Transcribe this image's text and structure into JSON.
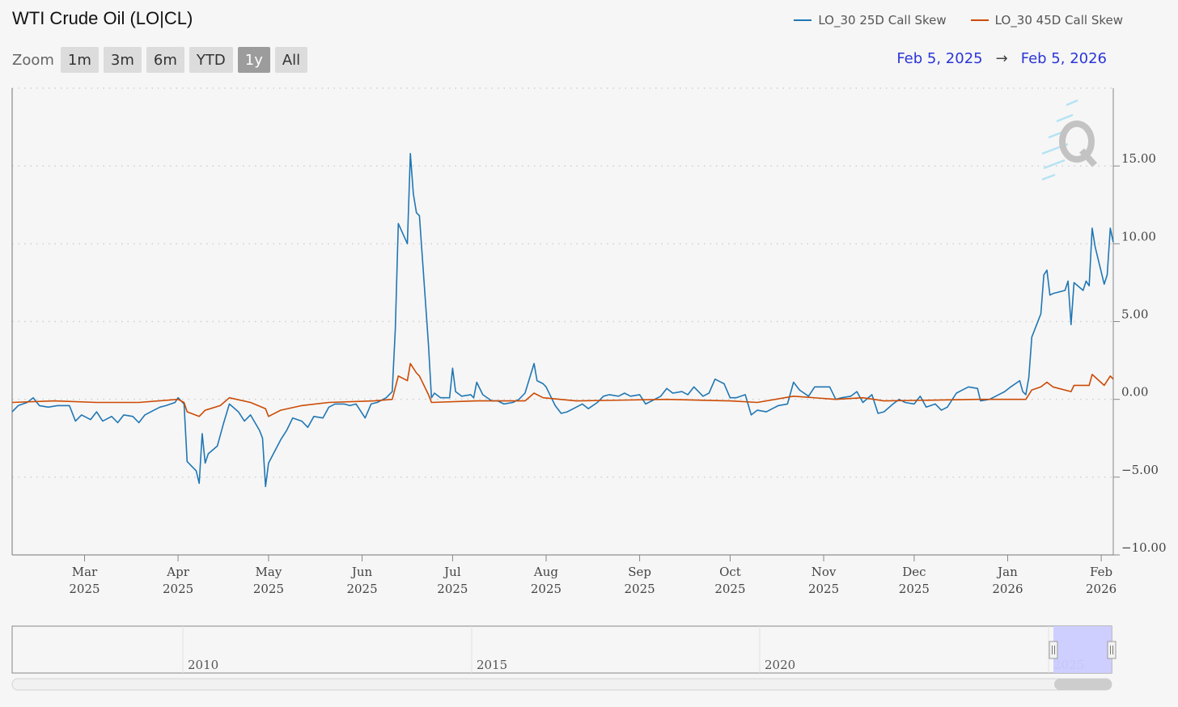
{
  "title": "WTI Crude Oil (LO|CL)",
  "zoom": {
    "label": "Zoom",
    "buttons": [
      "1m",
      "3m",
      "6m",
      "YTD",
      "1y",
      "All"
    ],
    "active": "1y"
  },
  "range": {
    "from": "Feb 5, 2025",
    "arrow": "→",
    "to": "Feb 5, 2026"
  },
  "colors": {
    "series1": "#2077b4",
    "series2": "#cc4a04",
    "navigator_mask": "#ccccff"
  },
  "navigator": {
    "labels": [
      "2010",
      "2015",
      "2020",
      "2025"
    ]
  },
  "chart_data": {
    "type": "line",
    "y_range": [
      -10,
      20
    ],
    "y_ticks": [
      15,
      10,
      5,
      0,
      -5,
      -10
    ],
    "y_tick_labels": [
      "15.00",
      "10.00",
      "5.00",
      "0.00",
      "−5.00",
      "−10.00"
    ],
    "x_range": [
      "2025-02-05",
      "2026-02-05"
    ],
    "x_ticks": [
      {
        "date": "2025-03-01",
        "label": [
          "Mar",
          "2025"
        ]
      },
      {
        "date": "2025-04-01",
        "label": [
          "Apr",
          "2025"
        ]
      },
      {
        "date": "2025-05-01",
        "label": [
          "May",
          "2025"
        ]
      },
      {
        "date": "2025-06-01",
        "label": [
          "Jun",
          "2025"
        ]
      },
      {
        "date": "2025-07-01",
        "label": [
          "Jul",
          "2025"
        ]
      },
      {
        "date": "2025-08-01",
        "label": [
          "Aug",
          "2025"
        ]
      },
      {
        "date": "2025-09-01",
        "label": [
          "Sep",
          "2025"
        ]
      },
      {
        "date": "2025-10-01",
        "label": [
          "Oct",
          "2025"
        ]
      },
      {
        "date": "2025-11-01",
        "label": [
          "Nov",
          "2025"
        ]
      },
      {
        "date": "2025-12-01",
        "label": [
          "Dec",
          "2025"
        ]
      },
      {
        "date": "2026-01-01",
        "label": [
          "Jan",
          "2026"
        ]
      },
      {
        "date": "2026-02-01",
        "label": [
          "Feb",
          "2026"
        ]
      }
    ],
    "grid": true,
    "legend_position": "top-right",
    "series": [
      {
        "name": "LO_30 25D Call Skew",
        "points": [
          [
            "2025-02-05",
            -0.8
          ],
          [
            "2025-02-07",
            -0.4
          ],
          [
            "2025-02-10",
            -0.2
          ],
          [
            "2025-02-12",
            0.1
          ],
          [
            "2025-02-14",
            -0.4
          ],
          [
            "2025-02-17",
            -0.5
          ],
          [
            "2025-02-20",
            -0.4
          ],
          [
            "2025-02-24",
            -0.4
          ],
          [
            "2025-02-26",
            -1.4
          ],
          [
            "2025-02-28",
            -1.0
          ],
          [
            "2025-03-03",
            -1.3
          ],
          [
            "2025-03-05",
            -0.8
          ],
          [
            "2025-03-07",
            -1.4
          ],
          [
            "2025-03-10",
            -1.1
          ],
          [
            "2025-03-12",
            -1.5
          ],
          [
            "2025-03-14",
            -1.0
          ],
          [
            "2025-03-17",
            -1.1
          ],
          [
            "2025-03-19",
            -1.5
          ],
          [
            "2025-03-21",
            -1.0
          ],
          [
            "2025-03-24",
            -0.7
          ],
          [
            "2025-03-26",
            -0.5
          ],
          [
            "2025-03-28",
            -0.4
          ],
          [
            "2025-03-31",
            -0.2
          ],
          [
            "2025-04-01",
            0.1
          ],
          [
            "2025-04-03",
            -0.3
          ],
          [
            "2025-04-04",
            -4.0
          ],
          [
            "2025-04-07",
            -4.6
          ],
          [
            "2025-04-08",
            -5.4
          ],
          [
            "2025-04-09",
            -2.2
          ],
          [
            "2025-04-10",
            -4.1
          ],
          [
            "2025-04-11",
            -3.5
          ],
          [
            "2025-04-14",
            -3.0
          ],
          [
            "2025-04-16",
            -1.6
          ],
          [
            "2025-04-18",
            -0.3
          ],
          [
            "2025-04-21",
            -0.8
          ],
          [
            "2025-04-23",
            -1.4
          ],
          [
            "2025-04-25",
            -1.0
          ],
          [
            "2025-04-28",
            -2.0
          ],
          [
            "2025-04-29",
            -2.5
          ],
          [
            "2025-04-30",
            -5.6
          ],
          [
            "2025-05-01",
            -4.1
          ],
          [
            "2025-05-05",
            -2.6
          ],
          [
            "2025-05-07",
            -2.0
          ],
          [
            "2025-05-09",
            -1.2
          ],
          [
            "2025-05-12",
            -1.4
          ],
          [
            "2025-05-14",
            -1.8
          ],
          [
            "2025-05-16",
            -1.1
          ],
          [
            "2025-05-19",
            -1.2
          ],
          [
            "2025-05-21",
            -0.5
          ],
          [
            "2025-05-23",
            -0.3
          ],
          [
            "2025-05-26",
            -0.3
          ],
          [
            "2025-05-28",
            -0.4
          ],
          [
            "2025-05-30",
            -0.3
          ],
          [
            "2025-06-02",
            -1.2
          ],
          [
            "2025-06-04",
            -0.3
          ],
          [
            "2025-06-06",
            -0.2
          ],
          [
            "2025-06-09",
            0.1
          ],
          [
            "2025-06-11",
            0.5
          ],
          [
            "2025-06-12",
            4.5
          ],
          [
            "2025-06-13",
            11.3
          ],
          [
            "2025-06-16",
            10.0
          ],
          [
            "2025-06-17",
            15.8
          ],
          [
            "2025-06-18",
            13.2
          ],
          [
            "2025-06-19",
            12.0
          ],
          [
            "2025-06-20",
            11.8
          ],
          [
            "2025-06-23",
            3.5
          ],
          [
            "2025-06-24",
            0.1
          ],
          [
            "2025-06-25",
            0.4
          ],
          [
            "2025-06-27",
            0.1
          ],
          [
            "2025-06-30",
            0.1
          ],
          [
            "2025-07-01",
            2.0
          ],
          [
            "2025-07-02",
            0.5
          ],
          [
            "2025-07-04",
            0.2
          ],
          [
            "2025-07-07",
            0.3
          ],
          [
            "2025-07-08",
            0.1
          ],
          [
            "2025-07-09",
            1.1
          ],
          [
            "2025-07-11",
            0.3
          ],
          [
            "2025-07-14",
            -0.1
          ],
          [
            "2025-07-16",
            -0.1
          ],
          [
            "2025-07-18",
            -0.3
          ],
          [
            "2025-07-21",
            -0.2
          ],
          [
            "2025-07-23",
            0.0
          ],
          [
            "2025-07-25",
            0.4
          ],
          [
            "2025-07-28",
            2.3
          ],
          [
            "2025-07-29",
            1.2
          ],
          [
            "2025-07-31",
            1.0
          ],
          [
            "2025-08-01",
            0.8
          ],
          [
            "2025-08-04",
            -0.4
          ],
          [
            "2025-08-06",
            -0.9
          ],
          [
            "2025-08-08",
            -0.8
          ],
          [
            "2025-08-11",
            -0.5
          ],
          [
            "2025-08-13",
            -0.3
          ],
          [
            "2025-08-15",
            -0.6
          ],
          [
            "2025-08-18",
            -0.2
          ],
          [
            "2025-08-20",
            0.2
          ],
          [
            "2025-08-22",
            0.3
          ],
          [
            "2025-08-25",
            0.2
          ],
          [
            "2025-08-27",
            0.4
          ],
          [
            "2025-08-29",
            0.2
          ],
          [
            "2025-09-01",
            0.3
          ],
          [
            "2025-09-03",
            -0.3
          ],
          [
            "2025-09-05",
            -0.1
          ],
          [
            "2025-09-08",
            0.2
          ],
          [
            "2025-09-10",
            0.7
          ],
          [
            "2025-09-12",
            0.4
          ],
          [
            "2025-09-15",
            0.5
          ],
          [
            "2025-09-17",
            0.3
          ],
          [
            "2025-09-19",
            0.8
          ],
          [
            "2025-09-22",
            0.2
          ],
          [
            "2025-09-24",
            0.4
          ],
          [
            "2025-09-26",
            1.3
          ],
          [
            "2025-09-29",
            1.0
          ],
          [
            "2025-10-01",
            0.1
          ],
          [
            "2025-10-03",
            0.1
          ],
          [
            "2025-10-06",
            0.3
          ],
          [
            "2025-10-08",
            -1.0
          ],
          [
            "2025-10-10",
            -0.7
          ],
          [
            "2025-10-13",
            -0.8
          ],
          [
            "2025-10-15",
            -0.6
          ],
          [
            "2025-10-17",
            -0.4
          ],
          [
            "2025-10-20",
            -0.3
          ],
          [
            "2025-10-22",
            1.1
          ],
          [
            "2025-10-24",
            0.6
          ],
          [
            "2025-10-27",
            0.2
          ],
          [
            "2025-10-29",
            0.8
          ],
          [
            "2025-11-03",
            0.8
          ],
          [
            "2025-11-05",
            0.0
          ],
          [
            "2025-11-07",
            0.1
          ],
          [
            "2025-11-10",
            0.2
          ],
          [
            "2025-11-12",
            0.5
          ],
          [
            "2025-11-14",
            -0.2
          ],
          [
            "2025-11-17",
            0.3
          ],
          [
            "2025-11-19",
            -0.9
          ],
          [
            "2025-11-21",
            -0.8
          ],
          [
            "2025-11-24",
            -0.3
          ],
          [
            "2025-11-26",
            0.0
          ],
          [
            "2025-11-28",
            -0.2
          ],
          [
            "2025-12-01",
            -0.3
          ],
          [
            "2025-12-03",
            0.2
          ],
          [
            "2025-12-05",
            -0.5
          ],
          [
            "2025-12-08",
            -0.3
          ],
          [
            "2025-12-10",
            -0.7
          ],
          [
            "2025-12-12",
            -0.5
          ],
          [
            "2025-12-15",
            0.4
          ],
          [
            "2025-12-17",
            0.6
          ],
          [
            "2025-12-19",
            0.8
          ],
          [
            "2025-12-22",
            0.7
          ],
          [
            "2025-12-23",
            -0.1
          ],
          [
            "2025-12-26",
            0.0
          ],
          [
            "2025-12-29",
            0.3
          ],
          [
            "2025-12-31",
            0.5
          ],
          [
            "2026-01-02",
            0.8
          ],
          [
            "2026-01-05",
            1.2
          ],
          [
            "2026-01-06",
            0.5
          ],
          [
            "2026-01-07",
            0.3
          ],
          [
            "2026-01-08",
            1.4
          ],
          [
            "2026-01-09",
            4.0
          ],
          [
            "2026-01-12",
            5.5
          ],
          [
            "2026-01-13",
            8.0
          ],
          [
            "2026-01-14",
            8.3
          ],
          [
            "2026-01-15",
            6.7
          ],
          [
            "2026-01-16",
            6.8
          ],
          [
            "2026-01-20",
            7.0
          ],
          [
            "2026-01-21",
            7.6
          ],
          [
            "2026-01-22",
            4.8
          ],
          [
            "2026-01-23",
            7.5
          ],
          [
            "2026-01-26",
            7.0
          ],
          [
            "2026-01-27",
            7.6
          ],
          [
            "2026-01-28",
            7.3
          ],
          [
            "2026-01-29",
            11.0
          ],
          [
            "2026-01-30",
            9.8
          ],
          [
            "2026-02-02",
            7.4
          ],
          [
            "2026-02-03",
            8.0
          ],
          [
            "2026-02-04",
            11.0
          ],
          [
            "2026-02-05",
            10.1
          ]
        ]
      },
      {
        "name": "LO_30 45D Call Skew",
        "points": [
          [
            "2025-02-05",
            -0.2
          ],
          [
            "2025-02-19",
            -0.1
          ],
          [
            "2025-03-05",
            -0.2
          ],
          [
            "2025-03-19",
            -0.2
          ],
          [
            "2025-04-01",
            0.0
          ],
          [
            "2025-04-03",
            -0.2
          ],
          [
            "2025-04-04",
            -0.8
          ],
          [
            "2025-04-08",
            -1.1
          ],
          [
            "2025-04-10",
            -0.7
          ],
          [
            "2025-04-15",
            -0.4
          ],
          [
            "2025-04-18",
            0.1
          ],
          [
            "2025-04-25",
            -0.2
          ],
          [
            "2025-04-30",
            -0.6
          ],
          [
            "2025-05-01",
            -1.1
          ],
          [
            "2025-05-05",
            -0.7
          ],
          [
            "2025-05-12",
            -0.4
          ],
          [
            "2025-05-21",
            -0.2
          ],
          [
            "2025-06-05",
            -0.1
          ],
          [
            "2025-06-11",
            0.0
          ],
          [
            "2025-06-13",
            1.5
          ],
          [
            "2025-06-16",
            1.2
          ],
          [
            "2025-06-17",
            2.3
          ],
          [
            "2025-06-19",
            1.7
          ],
          [
            "2025-06-20",
            1.5
          ],
          [
            "2025-06-23",
            0.3
          ],
          [
            "2025-06-24",
            -0.2
          ],
          [
            "2025-07-09",
            -0.1
          ],
          [
            "2025-07-25",
            -0.1
          ],
          [
            "2025-07-28",
            0.4
          ],
          [
            "2025-07-31",
            0.1
          ],
          [
            "2025-08-11",
            -0.1
          ],
          [
            "2025-09-10",
            0.0
          ],
          [
            "2025-10-01",
            -0.1
          ],
          [
            "2025-10-10",
            -0.2
          ],
          [
            "2025-10-22",
            0.2
          ],
          [
            "2025-11-05",
            0.0
          ],
          [
            "2025-11-14",
            0.1
          ],
          [
            "2025-11-21",
            -0.1
          ],
          [
            "2025-12-22",
            0.0
          ],
          [
            "2026-01-07",
            0.0
          ],
          [
            "2026-01-09",
            0.6
          ],
          [
            "2026-01-12",
            0.8
          ],
          [
            "2026-01-14",
            1.1
          ],
          [
            "2026-01-16",
            0.8
          ],
          [
            "2026-01-22",
            0.5
          ],
          [
            "2026-01-23",
            0.9
          ],
          [
            "2026-01-28",
            0.9
          ],
          [
            "2026-01-29",
            1.6
          ],
          [
            "2026-02-02",
            0.9
          ],
          [
            "2026-02-04",
            1.5
          ],
          [
            "2026-02-05",
            1.3
          ]
        ]
      }
    ]
  }
}
